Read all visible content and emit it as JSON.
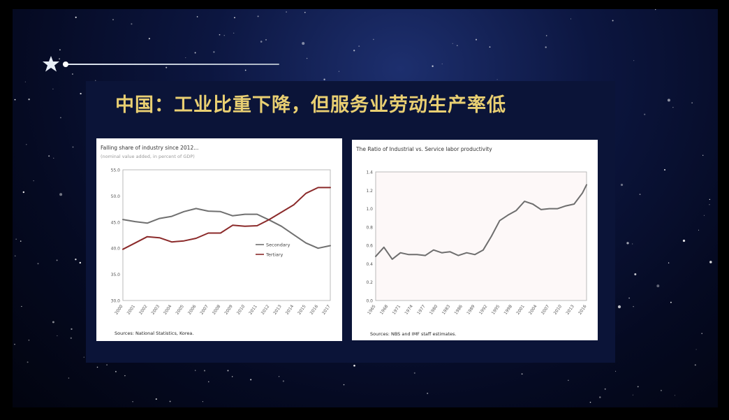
{
  "slide": {
    "title": "中国：工业比重下降，但服务业劳动生产率低",
    "decor_icon": "star-icon",
    "colors": {
      "title": "#e9cf72",
      "background": "#0b1438",
      "panel": "#ffffff"
    }
  },
  "chart_data": [
    {
      "type": "line",
      "title": "Falling share of industry since 2012...",
      "subtitle": "(nominal value added, in percent of GDP)",
      "source": "Sources: National Statistics, Korea.",
      "x": [
        2000,
        2001,
        2002,
        2003,
        2004,
        2005,
        2006,
        2007,
        2008,
        2009,
        2010,
        2011,
        2012,
        2013,
        2014,
        2015,
        2016,
        2017
      ],
      "xticks": [
        "2000",
        "2001",
        "2002",
        "2003",
        "2004",
        "2005",
        "2006",
        "2007",
        "2008",
        "2009",
        "2010",
        "2011",
        "2012",
        "2013",
        "2014",
        "2015",
        "2016",
        "2017"
      ],
      "ylim": [
        30,
        55
      ],
      "yticks": [
        "55.0",
        "50.0",
        "45.0",
        "40.0",
        "35.0",
        "30.0"
      ],
      "ytick_values": [
        55,
        50,
        45,
        40,
        35,
        30
      ],
      "legend_position": "center-right",
      "series": [
        {
          "name": "Secondary",
          "color": "#707070",
          "values": [
            45.5,
            45.1,
            44.8,
            45.7,
            46.1,
            47.0,
            47.6,
            47.1,
            47.0,
            46.2,
            46.5,
            46.5,
            45.4,
            44.2,
            42.6,
            41.0,
            40.0,
            40.5
          ]
        },
        {
          "name": "Tertiary",
          "color": "#8b2a2a",
          "values": [
            39.8,
            41.0,
            42.2,
            42.0,
            41.2,
            41.4,
            41.9,
            42.9,
            42.9,
            44.4,
            44.2,
            44.3,
            45.5,
            46.9,
            48.3,
            50.5,
            51.6,
            51.6
          ]
        }
      ]
    },
    {
      "type": "line",
      "title": "The Ratio of Industrial vs. Service labor productivity",
      "source": "Sources: NBS and IMF staff estimates.",
      "x": [
        1965,
        1967,
        1969,
        1971,
        1973,
        1975,
        1977,
        1979,
        1981,
        1983,
        1985,
        1987,
        1989,
        1991,
        1993,
        1995,
        1997,
        1999,
        2001,
        2003,
        2005,
        2007,
        2009,
        2011,
        2013,
        2015,
        2016
      ],
      "xticks": [
        "1965",
        "1968",
        "1971",
        "1974",
        "1977",
        "1980",
        "1983",
        "1986",
        "1989",
        "1992",
        "1995",
        "1998",
        "2001",
        "2004",
        "2007",
        "2010",
        "2013",
        "2016"
      ],
      "ylim": [
        0,
        1.4
      ],
      "yticks": [
        "1.4",
        "1.2",
        "1.0",
        "0.8",
        "0.6",
        "0.4",
        "0.2",
        "0.0"
      ],
      "ytick_values": [
        1.4,
        1.2,
        1.0,
        0.8,
        0.6,
        0.4,
        0.2,
        0.0
      ],
      "series": [
        {
          "color": "#6e6e6e",
          "values": [
            0.48,
            0.58,
            0.45,
            0.52,
            0.5,
            0.5,
            0.49,
            0.55,
            0.52,
            0.53,
            0.49,
            0.52,
            0.5,
            0.55,
            0.7,
            0.87,
            0.93,
            0.98,
            1.08,
            1.05,
            0.99,
            1.0,
            1.0,
            1.03,
            1.05,
            1.17,
            1.26
          ]
        }
      ]
    }
  ]
}
